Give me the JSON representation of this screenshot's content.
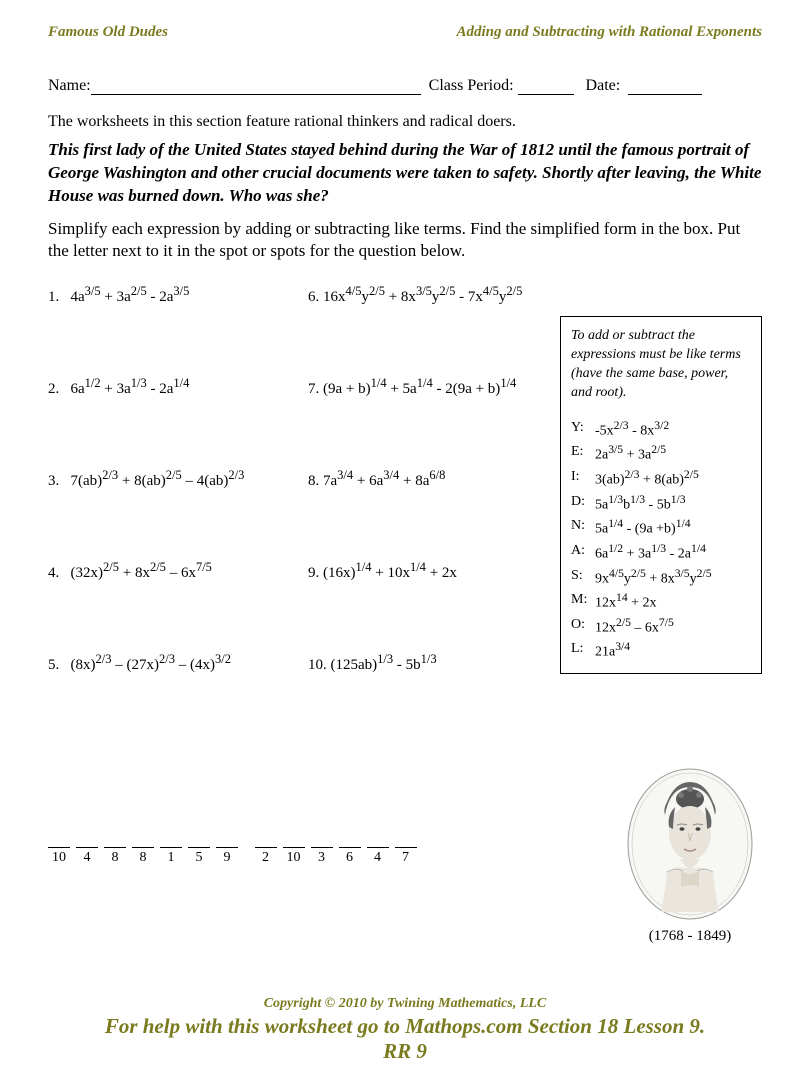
{
  "header": {
    "left": "Famous Old Dudes",
    "right": "Adding and Subtracting with Rational Exponents"
  },
  "form": {
    "name_label": "Name:",
    "class_label": "Class Period:",
    "date_label": "Date:"
  },
  "intro": "The worksheets in this section feature rational thinkers and radical doers.",
  "bio": "This first lady of the United States stayed behind during the War of 1812 until the famous portrait of George Washington and other crucial documents were taken to safety. Shortly after leaving, the White House was burned down. Who was she?",
  "instructions": "Simplify each expression by adding or subtracting like terms.  Find the simplified form in the box.  Put the letter next to it in the spot or spots for the question below.",
  "problems_left": [
    {
      "n": "1.",
      "expr": "4a<sup>3/5</sup> + 3a<sup>2/5</sup> - 2a<sup>3/5</sup>"
    },
    {
      "n": "2.",
      "expr": "6a<sup>1/2</sup> + 3a<sup>1/3</sup> - 2a<sup>1/4</sup>"
    },
    {
      "n": "3.",
      "expr": "7(ab)<sup>2/3</sup> + 8(ab)<sup>2/5</sup> – 4(ab)<sup>2/3</sup>"
    },
    {
      "n": "4.",
      "expr": "(32x)<sup>2/5</sup> + 8x<sup>2/5</sup> – 6x<sup>7/5</sup>"
    },
    {
      "n": "5.",
      "expr": "(8x)<sup>2/3</sup> – (27x)<sup>2/3</sup> – (4x)<sup>3/2</sup>"
    }
  ],
  "problems_right": [
    {
      "n": "6.",
      "expr": "16x<sup>4/5</sup>y<sup>2/5</sup> + 8x<sup>3/5</sup>y<sup>2/5</sup> - 7x<sup>4/5</sup>y<sup>2/5</sup>"
    },
    {
      "n": "7.",
      "expr": "(9a + b)<sup>1/4</sup> + 5a<sup>1/4</sup> - 2(9a + b)<sup>1/4</sup>"
    },
    {
      "n": "8.",
      "expr": "7a<sup>3/4</sup> +  6a<sup>3/4</sup>  +  8a<sup>6/8</sup>"
    },
    {
      "n": "9.",
      "expr": "(16x)<sup>1/4</sup> +  10x<sup>1/4</sup>  +  2x"
    },
    {
      "n": "10.",
      "expr": "(125ab)<sup>1/3</sup>  -   5b<sup>1/3</sup>"
    }
  ],
  "box": {
    "intro": "To add or subtract the expressions must be like terms (have the same base, power, and root).",
    "keys": [
      {
        "l": "Y:",
        "e": "-5x<sup>2/3</sup> - 8x<sup>3/2</sup>"
      },
      {
        "l": "E:",
        "e": "2a<sup>3/5</sup> + 3a<sup>2/5</sup>"
      },
      {
        "l": "I:",
        "e": "3(ab)<sup>2/3</sup> + 8(ab)<sup>2/5</sup>"
      },
      {
        "l": "D:",
        "e": "5a<sup>1/3</sup>b<sup>1/3</sup> - 5b<sup>1/3</sup>"
      },
      {
        "l": "N:",
        "e": "5a<sup>1/4</sup> - (9a +b)<sup>1/4</sup>"
      },
      {
        "l": "A:",
        "e": "6a<sup>1/2</sup> + 3a<sup>1/3</sup> - 2a<sup>1/4</sup>"
      },
      {
        "l": "S:",
        "e": "9x<sup>4/5</sup>y<sup>2/5</sup> + 8x<sup>3/5</sup>y<sup>2/5</sup>"
      },
      {
        "l": "M:",
        "e": "12x<sup>14</sup> + 2x"
      },
      {
        "l": "O:",
        "e": "12x<sup>2/5</sup> – 6x<sup>7/5</sup>"
      },
      {
        "l": "L:",
        "e": "21a<sup>3/4</sup>"
      }
    ]
  },
  "answer_blanks": [
    "10",
    "4",
    "8",
    "8",
    "1",
    "5",
    "9",
    "2",
    "10",
    "3",
    "6",
    "4",
    "7"
  ],
  "portrait_date": "(1768 - 1849)",
  "footer": {
    "copyright": "Copyright © 2010 by Twining Mathematics, LLC",
    "help": "For help with this worksheet go to Mathops.com Section 18 Lesson 9.",
    "rr": "RR 9"
  }
}
